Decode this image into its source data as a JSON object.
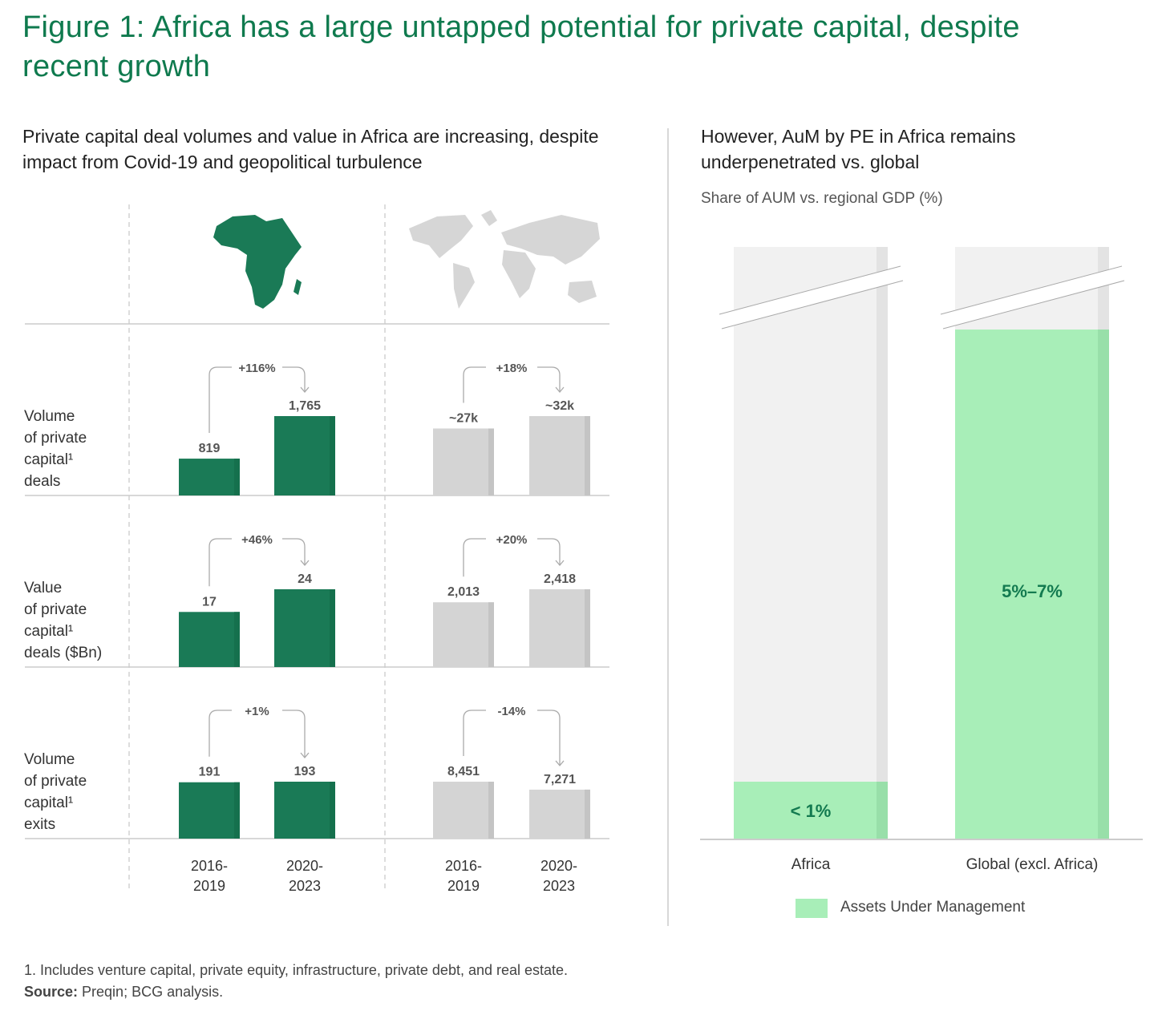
{
  "title": "Figure 1: Africa has a large untapped potential for private capital, despite recent growth",
  "left_subtitle": "Private capital deal volumes and value in Africa are increasing, despite impact from Covid-19 and geopolitical turbulence",
  "right_subtitle": "However, AuM by PE in Africa remains underpenetrated vs. global",
  "colors": {
    "title": "#0f7a4e",
    "africa_bar": "#1a7a56",
    "world_bar": "#d4d4d4",
    "aum": "#a8eeb8",
    "aum_label": "#137a50",
    "background_bar": "#f1f1f1"
  },
  "icons": [
    "africa-map-icon",
    "world-map-icon"
  ],
  "chart_data": [
    {
      "type": "bar",
      "title": "",
      "categories": [
        "2016-\n2019",
        "2020-\n2023"
      ],
      "rows": [
        {
          "label": "Volume\nof private\ncapital¹\ndeals",
          "africa": {
            "values": [
              819,
              1765
            ],
            "labels": [
              "819",
              "1,765"
            ],
            "change": "+116%"
          },
          "world": {
            "values": [
              27000,
              32000
            ],
            "labels": [
              "~27k",
              "~32k"
            ],
            "change": "+18%"
          }
        },
        {
          "label": "Value\nof private\ncapital¹\ndeals ($Bn)",
          "africa": {
            "values": [
              17,
              24
            ],
            "labels": [
              "17",
              "24"
            ],
            "change": "+46%"
          },
          "world": {
            "values": [
              2013,
              2418
            ],
            "labels": [
              "2,013",
              "2,418"
            ],
            "change": "+20%"
          }
        },
        {
          "label": "Volume\nof private\ncapital¹\nexits",
          "africa": {
            "values": [
              191,
              193
            ],
            "labels": [
              "191",
              "193"
            ],
            "change": "+1%"
          },
          "world": {
            "values": [
              8451,
              7271
            ],
            "labels": [
              "8,451",
              "7,271"
            ],
            "change": "-14%"
          }
        }
      ]
    },
    {
      "type": "bar",
      "title": "",
      "ylabel": "Share of AUM vs. regional GDP (%)",
      "categories": [
        "Africa",
        "Global (excl. Africa)"
      ],
      "series": [
        {
          "name": "Assets Under Management",
          "values": [
            [
              0,
              1
            ],
            [
              5,
              7
            ]
          ],
          "labels": [
            "< 1%",
            "5%–7%"
          ]
        }
      ],
      "axis_break": true,
      "legend": "bottom"
    }
  ],
  "footnote": "1. Includes venture capital, private equity, infrastructure, private debt, and real estate.",
  "source_label": "Source:",
  "source_text": " Preqin; BCG analysis."
}
